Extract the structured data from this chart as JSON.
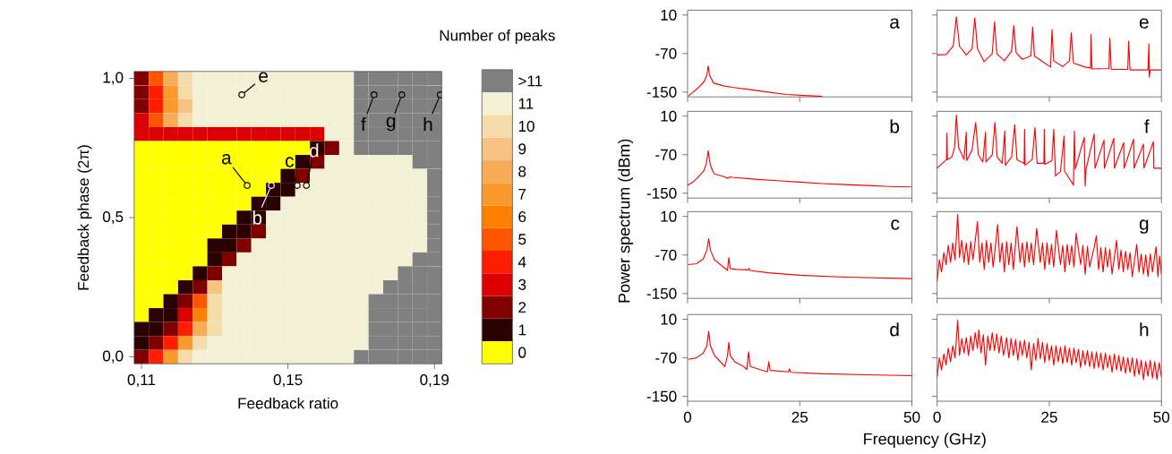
{
  "chart_data": [
    {
      "type": "heatmap",
      "xlabel": "Feedback ratio",
      "ylabel": "Feedback phase (2π)",
      "clabel": "Number of peaks",
      "categories": [
        "0,11",
        null,
        null,
        null,
        null,
        null,
        null,
        null,
        null,
        null,
        "0,15",
        null,
        null,
        null,
        null,
        null,
        null,
        null,
        null,
        null,
        "0,19"
      ],
      "y_categories": [
        "1,0",
        null,
        null,
        null,
        null,
        null,
        null,
        null,
        null,
        null,
        "0,5",
        null,
        null,
        null,
        null,
        null,
        null,
        null,
        null,
        null,
        "0,0"
      ],
      "clim": [
        -0.5,
        12.5
      ],
      "cticks": [
        0,
        1,
        2,
        3,
        4,
        5,
        6,
        7,
        8,
        9,
        10,
        11,
        {
          "value": 12,
          "label": ">11"
        }
      ],
      "colors": [
        "#ffff00",
        "#2b0000",
        "#800000",
        "#dd0000",
        "#ff1f00",
        "#ff5500",
        "#ff8000",
        "#fb9a2c",
        "#f7ad57",
        "#f6c385",
        "#f5dcaa",
        "#f2f0d5",
        "#808080"
      ],
      "cells": [
        [
          2,
          5,
          8,
          10,
          11,
          11,
          11,
          11,
          11,
          11,
          11,
          11,
          11,
          11,
          11,
          12,
          12,
          12,
          12,
          12,
          12
        ],
        [
          2,
          4,
          7,
          10,
          11,
          11,
          11,
          11,
          11,
          11,
          11,
          11,
          11,
          11,
          11,
          12,
          12,
          12,
          12,
          12,
          12
        ],
        [
          2,
          4,
          7,
          9,
          11,
          11,
          11,
          11,
          11,
          11,
          11,
          11,
          11,
          11,
          11,
          12,
          12,
          12,
          12,
          12,
          12
        ],
        [
          3,
          5,
          8,
          10,
          11,
          11,
          11,
          11,
          11,
          11,
          11,
          11,
          11,
          11,
          11,
          12,
          12,
          12,
          12,
          12,
          12
        ],
        [
          3,
          3,
          3,
          3,
          3,
          3,
          3,
          3,
          3,
          3,
          3,
          3,
          3,
          11,
          11,
          12,
          12,
          12,
          12,
          12,
          12
        ],
        [
          0,
          0,
          0,
          0,
          0,
          0,
          0,
          0,
          0,
          0,
          0,
          0,
          1,
          2,
          11,
          12,
          12,
          12,
          12,
          12,
          12
        ],
        [
          0,
          0,
          0,
          0,
          0,
          0,
          0,
          0,
          0,
          0,
          0,
          1,
          2,
          11,
          11,
          11,
          11,
          11,
          11,
          12,
          12
        ],
        [
          0,
          0,
          0,
          0,
          0,
          0,
          0,
          0,
          0,
          0,
          1,
          2,
          11,
          11,
          11,
          11,
          11,
          11,
          11,
          11,
          12
        ],
        [
          0,
          0,
          0,
          0,
          0,
          0,
          0,
          0,
          0,
          1,
          1,
          11,
          11,
          11,
          11,
          11,
          11,
          11,
          11,
          11,
          12
        ],
        [
          0,
          0,
          0,
          0,
          0,
          0,
          0,
          0,
          1,
          1,
          11,
          11,
          11,
          11,
          11,
          11,
          11,
          11,
          11,
          11,
          12
        ],
        [
          0,
          0,
          0,
          0,
          0,
          0,
          0,
          1,
          1,
          11,
          11,
          11,
          11,
          11,
          11,
          11,
          11,
          11,
          11,
          11,
          12
        ],
        [
          0,
          0,
          0,
          0,
          0,
          0,
          1,
          1,
          2,
          11,
          11,
          11,
          11,
          11,
          11,
          11,
          11,
          11,
          11,
          11,
          12
        ],
        [
          0,
          0,
          0,
          0,
          0,
          1,
          1,
          2,
          11,
          11,
          11,
          11,
          11,
          11,
          11,
          11,
          11,
          11,
          11,
          11,
          12
        ],
        [
          0,
          0,
          0,
          0,
          0,
          1,
          2,
          11,
          11,
          11,
          11,
          11,
          11,
          11,
          11,
          11,
          11,
          11,
          11,
          12,
          12
        ],
        [
          0,
          0,
          0,
          0,
          1,
          2,
          11,
          11,
          11,
          11,
          11,
          11,
          11,
          11,
          11,
          11,
          11,
          11,
          12,
          12,
          12
        ],
        [
          0,
          0,
          0,
          1,
          2,
          9,
          11,
          11,
          11,
          11,
          11,
          11,
          11,
          11,
          11,
          11,
          11,
          12,
          12,
          12,
          12
        ],
        [
          0,
          0,
          1,
          2,
          5,
          10,
          11,
          11,
          11,
          11,
          11,
          11,
          11,
          11,
          11,
          11,
          12,
          12,
          12,
          12,
          12
        ],
        [
          0,
          1,
          1,
          3,
          6,
          10,
          11,
          11,
          11,
          11,
          11,
          11,
          11,
          11,
          11,
          11,
          12,
          12,
          12,
          12,
          12
        ],
        [
          1,
          1,
          2,
          4,
          8,
          10,
          11,
          11,
          11,
          11,
          11,
          11,
          11,
          11,
          11,
          11,
          12,
          12,
          12,
          12,
          12
        ],
        [
          1,
          2,
          4,
          7,
          10,
          11,
          11,
          11,
          11,
          11,
          11,
          11,
          11,
          11,
          11,
          11,
          12,
          12,
          12,
          12,
          12
        ],
        [
          2,
          4,
          7,
          10,
          11,
          11,
          11,
          11,
          11,
          11,
          11,
          11,
          11,
          11,
          11,
          12,
          12,
          12,
          12,
          12,
          12
        ]
      ],
      "annotations": [
        "a",
        "b",
        "c",
        "d",
        "e",
        "f",
        "g",
        "h"
      ]
    },
    {
      "type": "line",
      "xlim": [
        0,
        50
      ],
      "ylim": [
        -160,
        20
      ],
      "xticks": [
        0,
        25,
        50
      ],
      "yticks": [
        -150,
        -70,
        10
      ],
      "tick_labels": "y",
      "annotations": [
        "a"
      ],
      "x": [
        0.2,
        1,
        2.5,
        3.7,
        4.3,
        4.6,
        4.9,
        5.8,
        8,
        10,
        14,
        18,
        22,
        26,
        30
      ],
      "series": [
        {
          "color": "#ff0000",
          "values": [
            -158,
            -152,
            -140,
            -128,
            -115,
            -96,
            -115,
            -131,
            -137,
            -140,
            -145,
            -150,
            -155,
            -157,
            -159
          ]
        }
      ]
    },
    {
      "type": "line",
      "xlim": [
        0,
        50
      ],
      "ylim": [
        -160,
        20
      ],
      "xticks": [
        0,
        25,
        50
      ],
      "yticks": [
        -150,
        -70,
        10
      ],
      "tick_labels": false,
      "annotations": [
        "e"
      ],
      "x": [
        0,
        2,
        3.6,
        4.3,
        5,
        6.5,
        7.8,
        8.4,
        9,
        10.5,
        12.3,
        12.8,
        13.3,
        15,
        16.6,
        17.1,
        17.6,
        19,
        20.9,
        21.3,
        21.7,
        24,
        25.3,
        25.6,
        26,
        28,
        29.5,
        29.9,
        30.4,
        33,
        34.2,
        34.3,
        34.5,
        38.3,
        38.5,
        38.8,
        42.5,
        42.7,
        43,
        47,
        47.2,
        47.3,
        47.5,
        50
      ],
      "series": [
        {
          "color": "#ff0000",
          "values": [
            -73,
            -72,
            -55,
            6,
            -55,
            -73,
            -60,
            4,
            -60,
            -87,
            -70,
            -4,
            -70,
            -85,
            -65,
            -12,
            -68,
            -82,
            -75,
            -15,
            -75,
            -90,
            -98,
            -21,
            -85,
            -97,
            -85,
            -27,
            -90,
            -98,
            -100,
            -30,
            -102,
            -101,
            -38,
            -103,
            -103,
            -44,
            -104,
            -104,
            -50,
            -119,
            -104,
            -104
          ]
        }
      ]
    },
    {
      "type": "line",
      "xlim": [
        0,
        50
      ],
      "ylim": [
        -160,
        20
      ],
      "xticks": [
        0,
        25,
        50
      ],
      "yticks": [
        -150,
        -70,
        10
      ],
      "tick_labels": "y",
      "annotations": [
        "b"
      ],
      "ylabel": "Power spectrum (dBm)",
      "x": [
        0,
        1,
        2,
        3,
        3.7,
        4.2,
        4.6,
        5.0,
        5.5,
        6,
        8,
        9,
        9.4,
        10,
        15,
        20,
        25,
        30,
        35,
        40,
        45,
        50
      ],
      "series": [
        {
          "color": "#ff0000",
          "values": [
            -133,
            -128,
            -120,
            -110,
            -102,
            -88,
            -62,
            -88,
            -102,
            -110,
            -115,
            -119,
            -116,
            -117,
            -121,
            -124,
            -127,
            -130,
            -132,
            -134,
            -136,
            -137
          ]
        }
      ]
    },
    {
      "type": "line",
      "xlim": [
        0,
        50
      ],
      "ylim": [
        -160,
        20
      ],
      "xticks": [
        0,
        25,
        50
      ],
      "yticks": [
        -150,
        -70,
        10
      ],
      "tick_labels": false,
      "annotations": [
        "f"
      ],
      "x": [
        0,
        1.5,
        2.1,
        2.2,
        2.3,
        3.3,
        3.9,
        4.3,
        4.8,
        6,
        6.5,
        6.6,
        7.8,
        8.6,
        9.2,
        10.2,
        10.8,
        10.9,
        12.3,
        12.9,
        13.4,
        14.5,
        15.1,
        15.2,
        16.6,
        17.3,
        17.8,
        19.4,
        19.5,
        19.6,
        21.2,
        21.8,
        22.3,
        23.8,
        23.9,
        24,
        25.6,
        26,
        26.4,
        27.5,
        28.3,
        28.4,
        30.4,
        30.6,
        30.8,
        32.8,
        33,
        33.2,
        35,
        35.2,
        37.2,
        37.3,
        39.4,
        39.5,
        41.6,
        41.7,
        43.8,
        43.9,
        46,
        46.1,
        48.2,
        48.3,
        50
      ],
      "series": [
        {
          "color": "#ff0000",
          "values": [
            -98,
            -85,
            -80,
            -25,
            -80,
            -75,
            -55,
            12,
            -55,
            -80,
            -23,
            -82,
            -60,
            -3,
            -70,
            -85,
            -23,
            -85,
            -70,
            -3,
            -75,
            -88,
            -21,
            -92,
            -75,
            -8,
            -80,
            -88,
            -17,
            -92,
            -80,
            -14,
            -88,
            -88,
            -17,
            -90,
            -82,
            -17,
            -114,
            -105,
            -31,
            -104,
            -133,
            -21,
            -100,
            -34,
            -135,
            -100,
            -27,
            -98,
            -40,
            -98,
            -36,
            -98,
            -45,
            -98,
            -38,
            -98,
            -48,
            -98,
            -43,
            -98,
            -98
          ]
        }
      ]
    },
    {
      "type": "line",
      "xlim": [
        0,
        50
      ],
      "ylim": [
        -160,
        20
      ],
      "xticks": [
        0,
        25,
        50
      ],
      "yticks": [
        -150,
        -70,
        10
      ],
      "tick_labels": "y",
      "annotations": [
        "c"
      ],
      "x": [
        0.1,
        2,
        3.5,
        4.3,
        4.7,
        5.1,
        6,
        8,
        8.9,
        9.2,
        9.5,
        11,
        13.5,
        13.7,
        13.9,
        18,
        25,
        35,
        50
      ],
      "series": [
        {
          "color": "#ff0000",
          "values": [
            -90,
            -88,
            -78,
            -60,
            -36,
            -60,
            -80,
            -95,
            -102,
            -75,
            -98,
            -100,
            -101,
            -98,
            -102,
            -107,
            -112,
            -116,
            -119
          ]
        }
      ]
    },
    {
      "type": "line",
      "xlim": [
        0,
        50
      ],
      "ylim": [
        -160,
        20
      ],
      "xticks": [
        0,
        25,
        50
      ],
      "yticks": [
        -150,
        -70,
        10
      ],
      "tick_labels": false,
      "annotations": [
        "g"
      ],
      "x": [
        0,
        0.5,
        1,
        1.5,
        2,
        2.5,
        3,
        3.5,
        4,
        4.6,
        5,
        5.5,
        6,
        6.5,
        7,
        7.5,
        8,
        9,
        9.5,
        10,
        10.5,
        11,
        11.5,
        12,
        12.5,
        13.5,
        14,
        14.5,
        15,
        15.5,
        16,
        16.5,
        17,
        17.8,
        18.5,
        19,
        19.5,
        20,
        20.5,
        21,
        21.5,
        22.2,
        23,
        23.5,
        24,
        24.5,
        25,
        25.5,
        26,
        26.6,
        27.5,
        28,
        28.5,
        29,
        29.5,
        30,
        30.5,
        31,
        32,
        32.5,
        33,
        33.5,
        34,
        35,
        35.5,
        36,
        36.5,
        37,
        37.5,
        38,
        38.5,
        39,
        40,
        40.5,
        41,
        41.5,
        42,
        42.5,
        43,
        43.5,
        44.5,
        45,
        45.5,
        46,
        46.5,
        47,
        47.5,
        48,
        48.8,
        49.2,
        49.6,
        50
      ],
      "series": [
        {
          "color": "#ff0000",
          "values": [
            -125,
            -80,
            -105,
            -65,
            -90,
            -50,
            -85,
            -45,
            -80,
            14,
            -75,
            -40,
            -85,
            -45,
            -90,
            -42,
            -80,
            -1,
            -85,
            -45,
            -100,
            -40,
            -85,
            -45,
            -95,
            -7,
            -85,
            -45,
            -105,
            -42,
            -90,
            -45,
            -100,
            -11,
            -85,
            -45,
            -95,
            -42,
            -85,
            -45,
            -90,
            -15,
            -85,
            -45,
            -100,
            -45,
            -90,
            -48,
            -95,
            -19,
            -90,
            -50,
            -105,
            -48,
            -90,
            -50,
            -95,
            -25,
            -90,
            -50,
            -110,
            -52,
            -95,
            -55,
            -30,
            -100,
            -55,
            -105,
            -55,
            -95,
            -58,
            -110,
            -40,
            -100,
            -60,
            -105,
            -62,
            -100,
            -65,
            -115,
            -48,
            -105,
            -68,
            -110,
            -70,
            -115,
            -68,
            -105,
            -53,
            -115,
            -72,
            -110
          ]
        }
      ]
    },
    {
      "type": "line",
      "xlim": [
        0,
        50
      ],
      "ylim": [
        -160,
        20
      ],
      "xticks": [
        0,
        25,
        50
      ],
      "yticks": [
        -150,
        -70,
        10
      ],
      "annotations": [
        "d"
      ],
      "xlabel": "Frequency (GHz)",
      "x": [
        0.1,
        2,
        3.5,
        4.3,
        4.7,
        5.1,
        6,
        7.5,
        8.3,
        8.9,
        9.2,
        9.5,
        10.5,
        12.5,
        13.2,
        13.6,
        14,
        16,
        17.8,
        18.1,
        18.4,
        22.5,
        22.7,
        23,
        30,
        40,
        50
      ],
      "series": [
        {
          "color": "#ff0000",
          "values": [
            -73,
            -70,
            -60,
            -45,
            -15,
            -45,
            -65,
            -80,
            -88,
            -65,
            -38,
            -65,
            -78,
            -88,
            -94,
            -58,
            -88,
            -94,
            -99,
            -78,
            -96,
            -99,
            -93,
            -100,
            -103,
            -105,
            -107
          ]
        }
      ]
    },
    {
      "type": "line",
      "xlim": [
        0,
        50
      ],
      "ylim": [
        -160,
        20
      ],
      "xticks": [
        0,
        25,
        50
      ],
      "yticks": [
        -150,
        -70,
        10
      ],
      "tick_labels": "x",
      "annotations": [
        "h"
      ],
      "x": [
        0,
        0.5,
        1,
        1.5,
        2,
        2.5,
        3,
        3.5,
        4,
        4.6,
        5,
        5.5,
        6,
        6.5,
        7,
        7.5,
        8,
        8.5,
        9,
        9.3,
        9.8,
        10.3,
        10.8,
        11.3,
        11.8,
        12.3,
        12.8,
        13.3,
        13.8,
        14.3,
        14.8,
        15.5,
        16,
        16.5,
        17,
        17.5,
        18,
        18.5,
        19,
        19.5,
        20,
        20.5,
        21,
        21.5,
        22,
        22.5,
        23,
        23.5,
        24,
        24.5,
        25,
        25.5,
        26,
        26.5,
        27,
        27.5,
        28,
        28.5,
        29,
        29.5,
        30,
        30.5,
        31,
        31.5,
        32,
        32.5,
        33,
        33.5,
        34,
        34.5,
        35,
        35.5,
        36,
        36.5,
        37,
        37.5,
        38,
        38.5,
        39,
        39.5,
        40,
        40.5,
        41,
        41.5,
        42,
        42.5,
        43,
        43.5,
        44,
        44.5,
        45,
        45.5,
        46,
        46.5,
        47,
        47.5,
        48,
        48.5,
        49,
        49.5,
        50
      ],
      "series": [
        {
          "color": "#ff0000",
          "values": [
            -110,
            -70,
            -95,
            -62,
            -85,
            -50,
            -78,
            -45,
            -70,
            8,
            -65,
            -30,
            -60,
            -28,
            -65,
            -25,
            -55,
            -18,
            -50,
            -12,
            -60,
            -22,
            -85,
            -25,
            -55,
            -18,
            -55,
            -20,
            -60,
            -25,
            -65,
            -28,
            -70,
            -30,
            -65,
            -32,
            -75,
            -35,
            -65,
            -33,
            -70,
            -38,
            -95,
            -40,
            -75,
            -30,
            -72,
            -38,
            -80,
            -40,
            -75,
            -45,
            -85,
            -45,
            -78,
            -48,
            -82,
            -45,
            -80,
            -50,
            -85,
            -50,
            -80,
            -52,
            -90,
            -55,
            -85,
            -55,
            -88,
            -58,
            -92,
            -58,
            -90,
            -60,
            -95,
            -60,
            -90,
            -65,
            -100,
            -62,
            -95,
            -65,
            -98,
            -68,
            -102,
            -70,
            -100,
            -70,
            -108,
            -72,
            -105,
            -75,
            -115,
            -78,
            -108,
            -75,
            -112,
            -78,
            -115,
            -80,
            -110
          ]
        }
      ]
    }
  ]
}
